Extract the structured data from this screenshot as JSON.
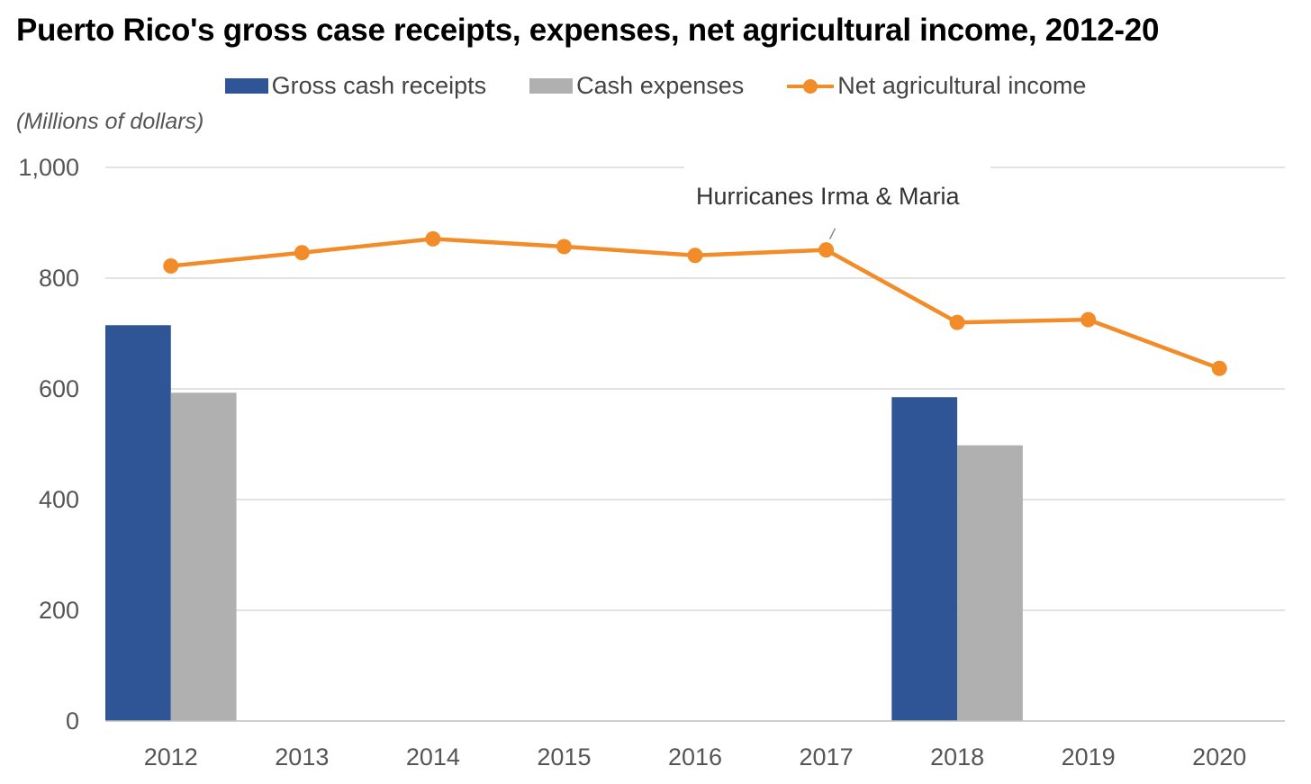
{
  "chart_data": {
    "type": "bar",
    "title": "Puerto Rico's gross case receipts, expenses, net agricultural income, 2012-20",
    "ylabel": "(Millions of dollars)",
    "xlabel": "",
    "categories": [
      "2012",
      "2013",
      "2014",
      "2015",
      "2016",
      "2017",
      "2018",
      "2019",
      "2020"
    ],
    "ylim": [
      0,
      1000
    ],
    "yticks": [
      0,
      200,
      400,
      600,
      800,
      1000
    ],
    "ytick_labels": [
      "0",
      "200",
      "400",
      "600",
      "800",
      "1,000"
    ],
    "grid": true,
    "legend_position": "top-center",
    "series": [
      {
        "name": "Gross cash receipts",
        "type": "bar",
        "color": "#2f5597",
        "values": [
          715,
          null,
          null,
          null,
          null,
          null,
          585,
          null,
          null
        ]
      },
      {
        "name": "Cash expenses",
        "type": "bar",
        "color": "#b0b0b0",
        "values": [
          593,
          null,
          null,
          null,
          null,
          null,
          498,
          null,
          null
        ]
      },
      {
        "name": "Net agricultural income",
        "type": "line",
        "marker": "circle",
        "color": "#f28c28",
        "values": [
          822,
          846,
          871,
          857,
          841,
          851,
          720,
          725,
          637
        ]
      }
    ],
    "annotations": [
      {
        "text": "Hurricanes Irma & Maria",
        "x": "2017",
        "y": 851
      }
    ]
  }
}
